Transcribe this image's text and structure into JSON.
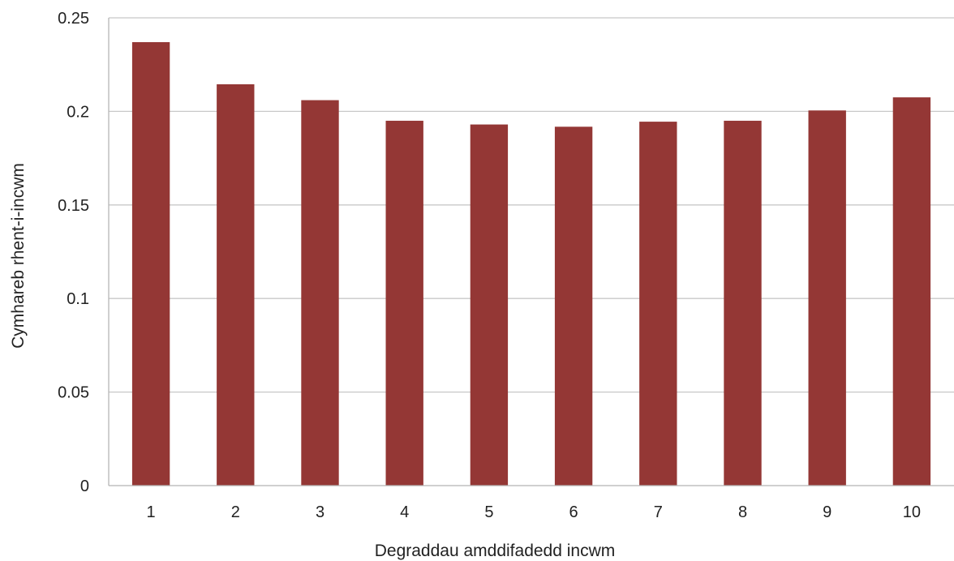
{
  "chart_data": {
    "type": "bar",
    "title": "",
    "xlabel": "Degraddau amddifadedd incwm",
    "ylabel": "Cymhareb rhent-i-incwm",
    "categories": [
      "1",
      "2",
      "3",
      "4",
      "5",
      "6",
      "7",
      "8",
      "9",
      "10"
    ],
    "values": [
      0.237,
      0.2145,
      0.206,
      0.195,
      0.193,
      0.1918,
      0.1945,
      0.195,
      0.2005,
      0.2075
    ],
    "ylim": [
      0,
      0.25
    ],
    "yticks": [
      0,
      0.05,
      0.1,
      0.15,
      0.2,
      0.25
    ],
    "ytick_labels": [
      "0",
      "0.05",
      "0.1",
      "0.15",
      "0.2",
      "0.25"
    ],
    "grid": true,
    "legend": "none",
    "colors": {
      "bar": "#943735"
    }
  }
}
